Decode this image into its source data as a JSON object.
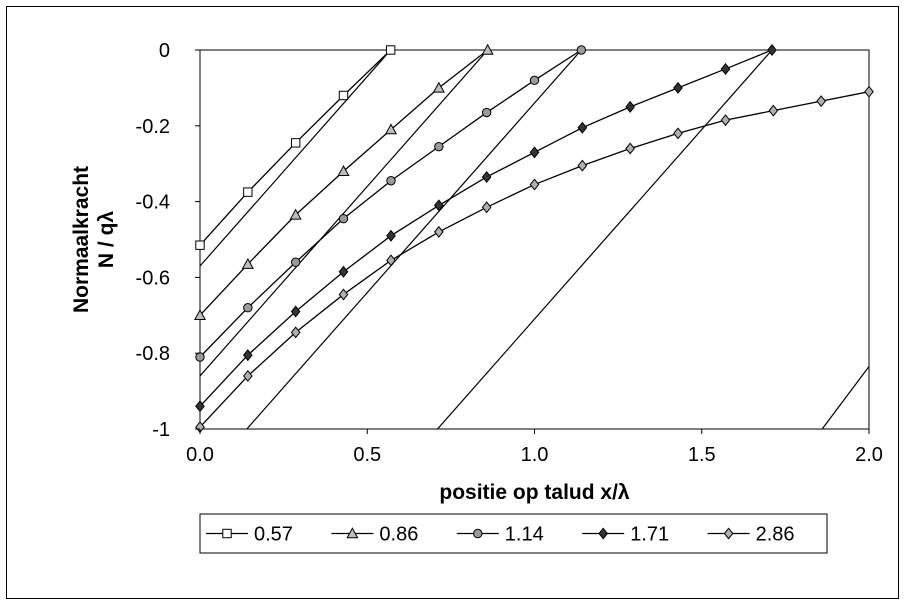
{
  "chart_data": {
    "type": "line",
    "xlabel": "positie op talud x/λ",
    "ylabel_line1": "Normaalkracht",
    "ylabel_line2": "N / qλ",
    "xlim": [
      0,
      2
    ],
    "ylim": [
      -1,
      0
    ],
    "x_ticks": [
      "0.0",
      "0.5",
      "1.0",
      "1.5",
      "2.0"
    ],
    "y_ticks": [
      "0",
      "-0.2",
      "-0.4",
      "-0.6",
      "-0.8",
      "-1"
    ],
    "grid": false,
    "legend_position": "bottom",
    "series": [
      {
        "name": "0.57",
        "marker": "square",
        "fill": "#ffffff",
        "x": [
          0,
          0.143,
          0.286,
          0.429,
          0.57
        ],
        "y": [
          -0.515,
          -0.375,
          -0.245,
          -0.12,
          0
        ]
      },
      {
        "name": "0.86",
        "marker": "triangle",
        "fill": "#bdbdbd",
        "x": [
          0,
          0.143,
          0.286,
          0.429,
          0.571,
          0.714,
          0.86
        ],
        "y": [
          -0.7,
          -0.565,
          -0.435,
          -0.32,
          -0.21,
          -0.1,
          0
        ]
      },
      {
        "name": "1.14",
        "marker": "circle",
        "fill": "#9a9a9a",
        "x": [
          0,
          0.143,
          0.286,
          0.429,
          0.571,
          0.714,
          0.857,
          1.0,
          1.14
        ],
        "y": [
          -0.81,
          -0.68,
          -0.56,
          -0.445,
          -0.345,
          -0.255,
          -0.165,
          -0.08,
          0
        ]
      },
      {
        "name": "1.71",
        "marker": "diamond",
        "fill": "#333333",
        "x": [
          0,
          0.143,
          0.286,
          0.429,
          0.571,
          0.714,
          0.857,
          1.0,
          1.143,
          1.286,
          1.429,
          1.571,
          1.71
        ],
        "y": [
          -0.94,
          -0.805,
          -0.69,
          -0.585,
          -0.49,
          -0.41,
          -0.335,
          -0.27,
          -0.205,
          -0.15,
          -0.1,
          -0.05,
          0
        ]
      },
      {
        "name": "2.86",
        "marker": "diamond",
        "fill": "#b0b0b0",
        "x": [
          0,
          0.143,
          0.286,
          0.429,
          0.571,
          0.714,
          0.857,
          1.0,
          1.143,
          1.286,
          1.429,
          1.571,
          1.714,
          1.857,
          2.0
        ],
        "y": [
          -0.995,
          -0.86,
          -0.745,
          -0.645,
          -0.555,
          -0.48,
          -0.415,
          -0.355,
          -0.305,
          -0.26,
          -0.22,
          -0.185,
          -0.16,
          -0.135,
          -0.11
        ]
      }
    ],
    "reference_lines": [
      {
        "points": [
          [
            0,
            -0.57
          ],
          [
            0.57,
            0
          ]
        ]
      },
      {
        "points": [
          [
            0,
            -0.86
          ],
          [
            0.86,
            0
          ]
        ]
      },
      {
        "points": [
          [
            0.14,
            -1
          ],
          [
            1.14,
            0
          ]
        ]
      },
      {
        "points": [
          [
            0.71,
            -1
          ],
          [
            1.71,
            0
          ]
        ]
      },
      {
        "points": [
          [
            1.86,
            -1
          ],
          [
            2.0,
            -0.835
          ]
        ]
      }
    ]
  }
}
